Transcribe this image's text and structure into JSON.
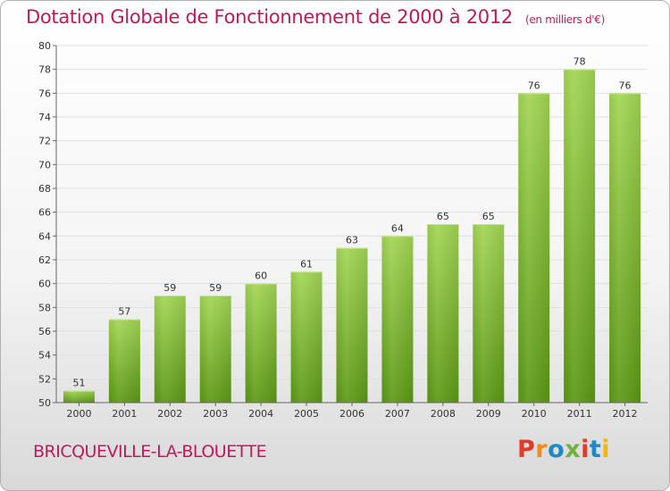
{
  "header": {
    "title": "Dotation Globale de Fonctionnement de 2000 à 2012",
    "subtitle": "(en milliers d'€)"
  },
  "footer": {
    "commune": "BRICQUEVILLE-LA-BLOUETTE",
    "logo": "Proxiti"
  },
  "colors": {
    "title": "#c2185b",
    "bar_light": "#9fd050",
    "bar_dark": "#5e9a16",
    "grid": "#e0e0e0"
  },
  "chart_data": {
    "type": "bar",
    "title": "Dotation Globale de Fonctionnement de 2000 à 2012",
    "subtitle": "(en milliers d'€)",
    "categories": [
      "2000",
      "2001",
      "2002",
      "2003",
      "2004",
      "2005",
      "2006",
      "2007",
      "2008",
      "2009",
      "2010",
      "2011",
      "2012"
    ],
    "values": [
      51,
      57,
      59,
      59,
      60,
      61,
      63,
      64,
      65,
      65,
      76,
      78,
      76
    ],
    "ylim": [
      50,
      80
    ],
    "yticks": [
      50,
      52,
      54,
      56,
      58,
      60,
      62,
      64,
      66,
      68,
      70,
      72,
      74,
      76,
      78,
      80
    ],
    "grid": "horizontal",
    "legend": "none"
  }
}
